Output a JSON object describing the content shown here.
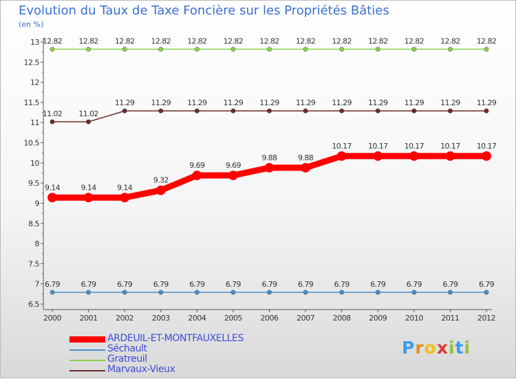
{
  "title": "Evolution du Taux de Taxe Foncière sur les Propriétés Bâties",
  "subtitle": "(en %)",
  "logo": {
    "letters": [
      "P",
      "r",
      "o",
      "x",
      "i",
      "t",
      "i"
    ],
    "colors": [
      "#3d9be9",
      "#e58b1f",
      "#f2c318",
      "#d83b2e",
      "#8cc43f",
      "#3d9be9",
      "#8cc43f"
    ]
  },
  "chart_data": {
    "type": "line",
    "x": [
      "2000",
      "2001",
      "2002",
      "2003",
      "2004",
      "2005",
      "2006",
      "2007",
      "2008",
      "2009",
      "2010",
      "2011",
      "2012"
    ],
    "ylim": [
      6.5,
      13
    ],
    "yticks": [
      "6.5",
      "7",
      "7.5",
      "8",
      "8.5",
      "9",
      "9.5",
      "10",
      "10.5",
      "11",
      "11.5",
      "12",
      "12.5",
      "13"
    ],
    "grid": false,
    "legend_position": "bottom-left",
    "series": [
      {
        "name": "ARDEUIL-ET-MONTFAUXELLES",
        "color": "#ff0000",
        "emphasis": true,
        "values": [
          9.14,
          9.14,
          9.14,
          9.32,
          9.69,
          9.69,
          9.88,
          9.88,
          10.17,
          10.17,
          10.17,
          10.17,
          10.17
        ],
        "labels": [
          "9.14",
          "9.14",
          "9.14",
          "9.32",
          "9.69",
          "9.69",
          "9.88",
          "9.88",
          "10.17",
          "10.17",
          "10.17",
          "10.17",
          "10.17"
        ]
      },
      {
        "name": "Séchault",
        "color": "#4a90c8",
        "values": [
          6.79,
          6.79,
          6.79,
          6.79,
          6.79,
          6.79,
          6.79,
          6.79,
          6.79,
          6.79,
          6.79,
          6.79,
          6.79
        ],
        "labels": [
          "6.79",
          "6.79",
          "6.79",
          "6.79",
          "6.79",
          "6.79",
          "6.79",
          "6.79",
          "6.79",
          "6.79",
          "6.79",
          "6.79",
          "6.79"
        ]
      },
      {
        "name": "Gratreuil",
        "color": "#8ed04a",
        "values": [
          12.82,
          12.82,
          12.82,
          12.82,
          12.82,
          12.82,
          12.82,
          12.82,
          12.82,
          12.82,
          12.82,
          12.82,
          12.82
        ],
        "labels": [
          "12.82",
          "12.82",
          "12.82",
          "12.82",
          "12.82",
          "12.82",
          "12.82",
          "12.82",
          "12.82",
          "12.82",
          "12.82",
          "12.82",
          "12.82"
        ]
      },
      {
        "name": "Marvaux-Vieux",
        "color": "#6e2b2b",
        "values": [
          11.02,
          11.02,
          11.29,
          11.29,
          11.29,
          11.29,
          11.29,
          11.29,
          11.29,
          11.29,
          11.29,
          11.29,
          11.29
        ],
        "labels": [
          "11.02",
          "11.02",
          "11.29",
          "11.29",
          "11.29",
          "11.29",
          "11.29",
          "11.29",
          "11.29",
          "11.29",
          "11.29",
          "11.29",
          "11.29"
        ]
      }
    ]
  }
}
